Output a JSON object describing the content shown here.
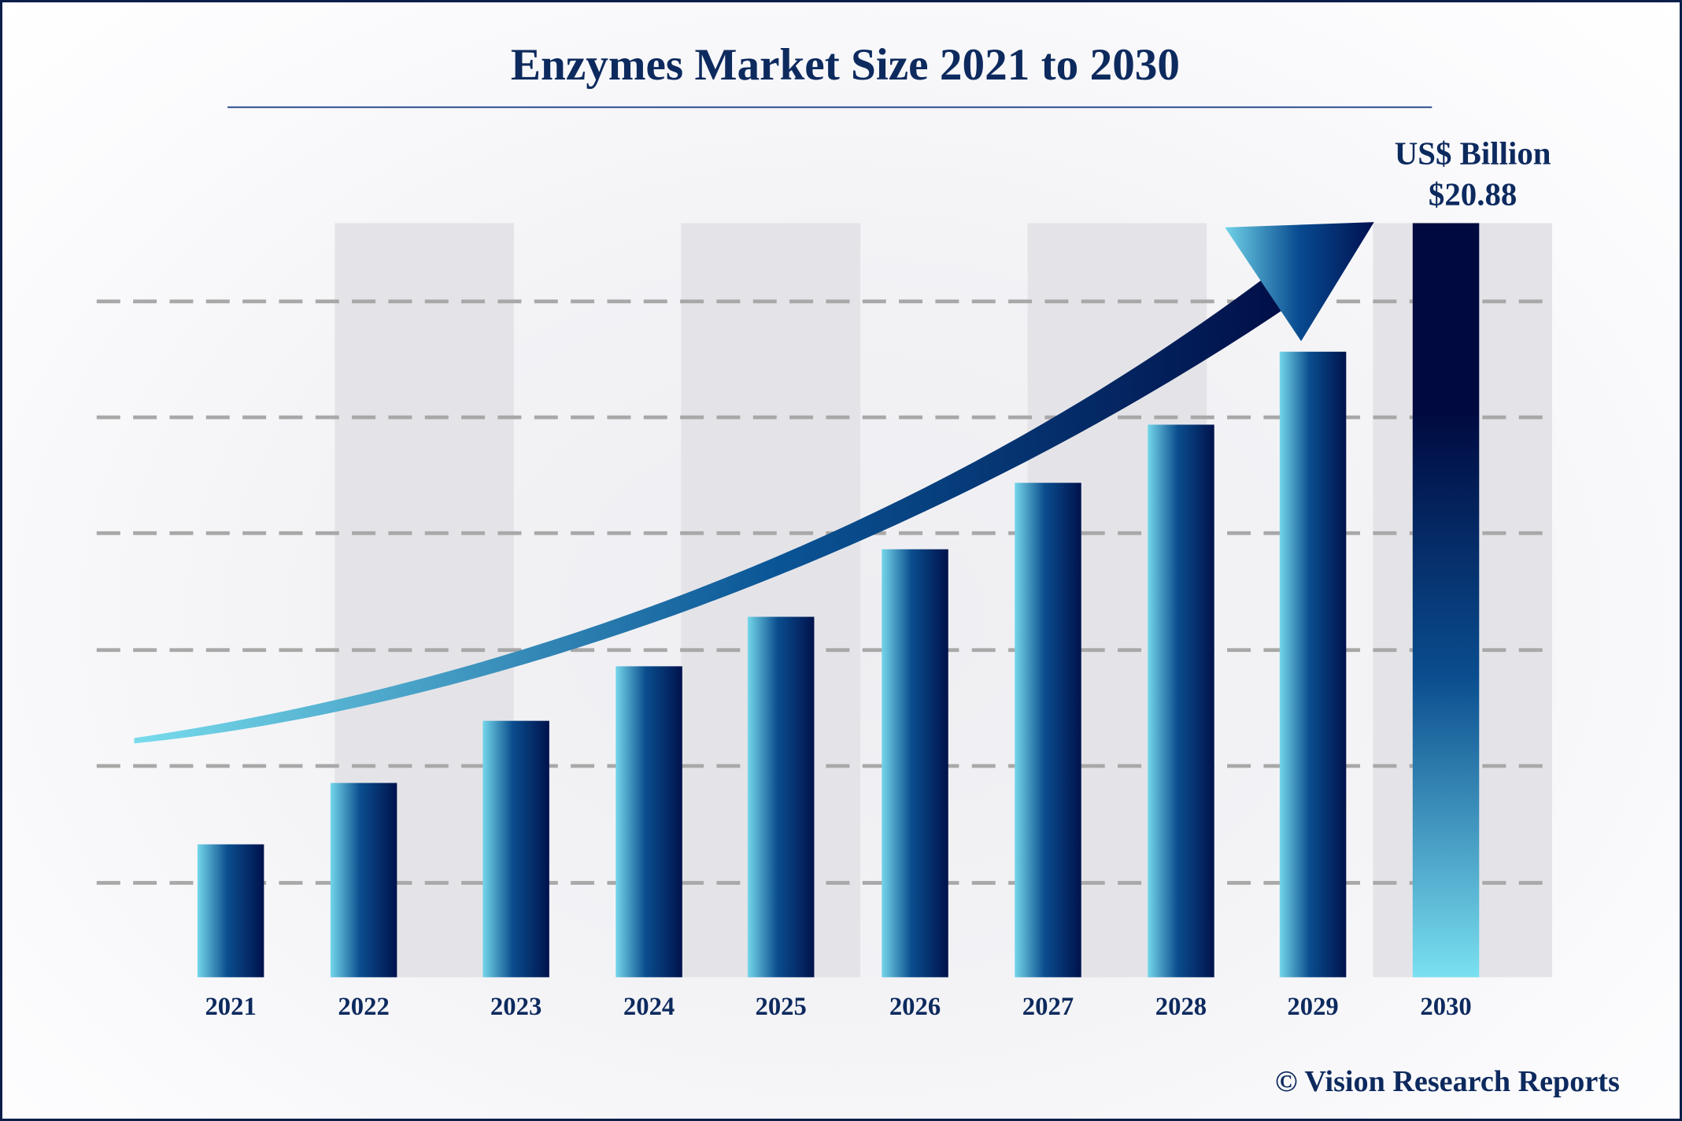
{
  "chart_data": {
    "type": "bar",
    "title": "Enzymes Market Size 2021 to 2030",
    "unit_label": "US$ Billion",
    "categories": [
      "2021",
      "2022",
      "2023",
      "2024",
      "2025",
      "2026",
      "2027",
      "2028",
      "2029",
      "2030"
    ],
    "values": [
      3.68,
      5.38,
      7.1,
      8.61,
      9.98,
      11.85,
      13.69,
      15.3,
      17.32,
      20.88
    ],
    "data_labels": {
      "2030": "$20.88"
    },
    "ylim": [
      0,
      20.88
    ],
    "grid": "dashed horizontal",
    "trend_arrow": true,
    "colors": {
      "bar_light": "#6fd3e8",
      "bar_mid": "#0a4a8c",
      "bar_dark": "#00104a",
      "title": "#0d2a5e",
      "shade": "#e4e4e8",
      "grid": "#a8a8a8"
    }
  },
  "footer": {
    "copyright": "© Vision Research Reports"
  }
}
